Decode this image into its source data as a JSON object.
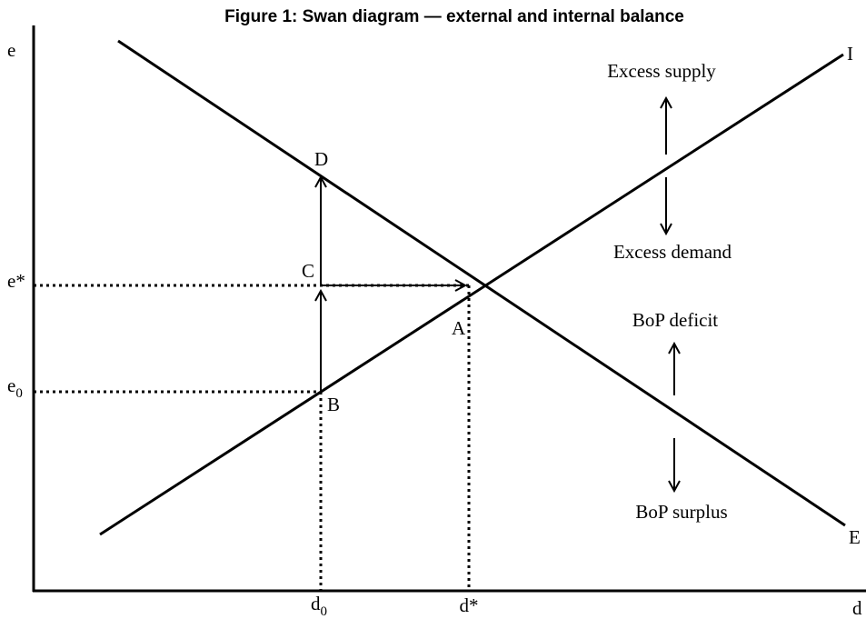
{
  "title": "Figure 1:  Swan diagram — external and internal balance",
  "axes": {
    "y_label": "e",
    "x_label": "d"
  },
  "ticks": {
    "e_star": "e*",
    "e0": {
      "base": "e",
      "sub": "0"
    },
    "d0": {
      "base": "d",
      "sub": "0"
    },
    "d_star": "d*"
  },
  "curves": {
    "internal": "I",
    "external": "E"
  },
  "points": {
    "A": "A",
    "B": "B",
    "C": "C",
    "D": "D"
  },
  "regions": {
    "excess_supply": "Excess supply",
    "excess_demand": "Excess demand",
    "bop_deficit": "BoP deficit",
    "bop_surplus": "BoP surplus"
  }
}
